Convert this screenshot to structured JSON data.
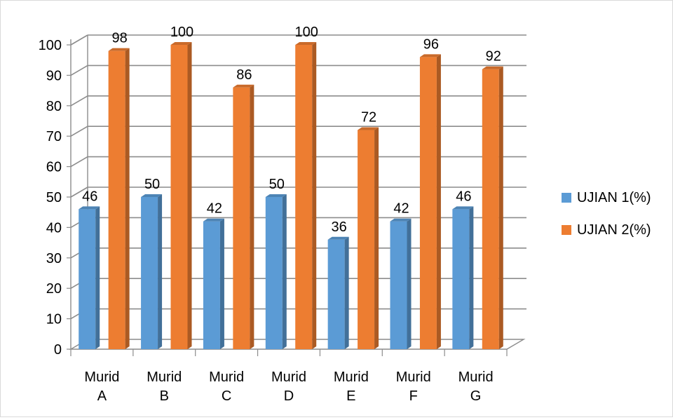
{
  "chart_data": {
    "type": "bar",
    "title": "",
    "xlabel": "",
    "ylabel": "",
    "ylim": [
      0,
      100
    ],
    "yticks": [
      0,
      10,
      20,
      30,
      40,
      50,
      60,
      70,
      80,
      90,
      100
    ],
    "categories": [
      [
        "Murid",
        "A"
      ],
      [
        "Murid",
        "B"
      ],
      [
        "Murid",
        "C"
      ],
      [
        "Murid",
        "D"
      ],
      [
        "Murid",
        "E"
      ],
      [
        "Murid",
        "F"
      ],
      [
        "Murid",
        "G"
      ]
    ],
    "series": [
      {
        "name": "UJIAN 1(%)",
        "values": [
          46,
          50,
          42,
          50,
          36,
          42,
          46
        ],
        "color": "#5b9bd5"
      },
      {
        "name": "UJIAN 2(%)",
        "values": [
          98,
          100,
          86,
          100,
          72,
          96,
          92
        ],
        "color": "#ed7d31"
      }
    ],
    "grid": true,
    "legend_position": "right",
    "style": "3d-clustered-column"
  }
}
